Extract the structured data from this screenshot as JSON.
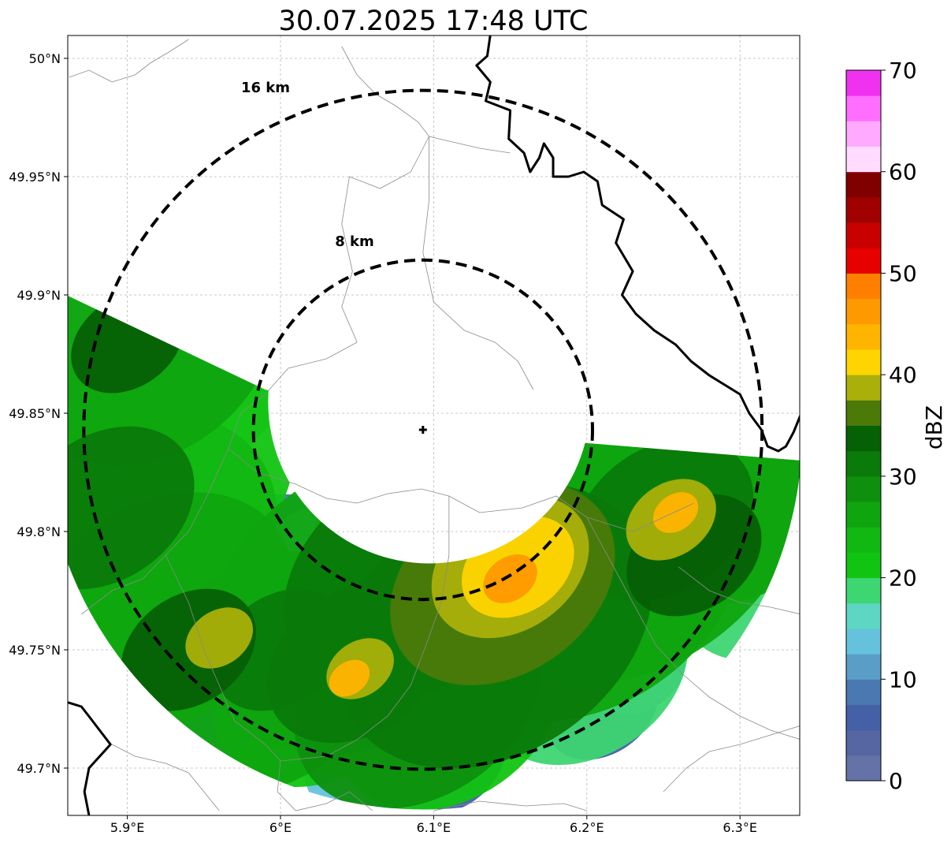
{
  "title": "30.07.2025 17:48 UTC",
  "map": {
    "lon_range": [
      5.86,
      6.34
    ],
    "lat_range": [
      49.68,
      50.01
    ],
    "x_ticks": [
      {
        "value": 5.9,
        "label": "5.9°E"
      },
      {
        "value": 6.0,
        "label": "6°E"
      },
      {
        "value": 6.1,
        "label": "6.1°E"
      },
      {
        "value": 6.2,
        "label": "6.2°E"
      },
      {
        "value": 6.3,
        "label": "6.3°E"
      }
    ],
    "y_ticks": [
      {
        "value": 49.7,
        "label": "49.7°N"
      },
      {
        "value": 49.75,
        "label": "49.75°N"
      },
      {
        "value": 49.8,
        "label": "49.8°N"
      },
      {
        "value": 49.85,
        "label": "49.85°N"
      },
      {
        "value": 49.9,
        "label": "49.9°N"
      },
      {
        "value": 49.95,
        "label": "49.95°N"
      },
      {
        "value": 50.0,
        "label": "50°N"
      }
    ],
    "gridlines": true,
    "radar_site": {
      "lon": 6.093,
      "lat": 49.843
    },
    "range_rings": [
      {
        "radius_km": 8,
        "label": "8 km"
      },
      {
        "radius_km": 16,
        "label": "16 km"
      }
    ],
    "country_border": [
      [
        6.137,
        50.01
      ],
      [
        6.135,
        50.001
      ],
      [
        6.128,
        49.997
      ],
      [
        6.137,
        49.99
      ],
      [
        6.134,
        49.982
      ],
      [
        6.15,
        49.978
      ],
      [
        6.149,
        49.966
      ],
      [
        6.159,
        49.96
      ],
      [
        6.163,
        49.952
      ],
      [
        6.169,
        49.958
      ],
      [
        6.172,
        49.964
      ],
      [
        6.178,
        49.958
      ],
      [
        6.178,
        49.95
      ],
      [
        6.188,
        49.95
      ],
      [
        6.198,
        49.952
      ],
      [
        6.207,
        49.948
      ],
      [
        6.21,
        49.938
      ],
      [
        6.224,
        49.932
      ],
      [
        6.219,
        49.922
      ],
      [
        6.23,
        49.91
      ],
      [
        6.223,
        49.9
      ],
      [
        6.232,
        49.892
      ],
      [
        6.244,
        49.885
      ],
      [
        6.258,
        49.879
      ],
      [
        6.268,
        49.872
      ],
      [
        6.28,
        49.866
      ],
      [
        6.29,
        49.862
      ],
      [
        6.3,
        49.858
      ],
      [
        6.306,
        49.85
      ],
      [
        6.314,
        49.843
      ],
      [
        6.318,
        49.836
      ],
      [
        6.325,
        49.834
      ],
      [
        6.33,
        49.836
      ],
      [
        6.335,
        49.842
      ],
      [
        6.34,
        49.85
      ]
    ],
    "southwest_border": [
      [
        5.86,
        49.728
      ],
      [
        5.87,
        49.726
      ],
      [
        5.876,
        49.721
      ],
      [
        5.889,
        49.71
      ],
      [
        5.875,
        49.7
      ],
      [
        5.872,
        49.69
      ],
      [
        5.875,
        49.68
      ]
    ],
    "local_boundaries": [
      [
        [
          6.04,
          50.005
        ],
        [
          6.05,
          49.993
        ],
        [
          6.062,
          49.985
        ],
        [
          6.075,
          49.98
        ],
        [
          6.09,
          49.973
        ],
        [
          6.097,
          49.967
        ],
        [
          6.11,
          49.965
        ],
        [
          6.13,
          49.962
        ],
        [
          6.15,
          49.96
        ]
      ],
      [
        [
          5.862,
          49.992
        ],
        [
          5.875,
          49.995
        ],
        [
          5.89,
          49.99
        ],
        [
          5.905,
          49.993
        ],
        [
          5.915,
          49.998
        ],
        [
          5.928,
          50.003
        ],
        [
          5.94,
          50.008
        ]
      ],
      [
        [
          6.097,
          49.967
        ],
        [
          6.085,
          49.952
        ],
        [
          6.065,
          49.945
        ],
        [
          6.045,
          49.95
        ],
        [
          6.04,
          49.93
        ],
        [
          6.047,
          49.91
        ],
        [
          6.04,
          49.895
        ],
        [
          6.05,
          49.88
        ]
      ],
      [
        [
          6.097,
          49.967
        ],
        [
          6.097,
          49.94
        ],
        [
          6.093,
          49.918
        ],
        [
          6.1,
          49.897
        ],
        [
          6.12,
          49.885
        ],
        [
          6.14,
          49.88
        ],
        [
          6.155,
          49.872
        ],
        [
          6.165,
          49.86
        ]
      ],
      [
        [
          6.05,
          49.88
        ],
        [
          6.03,
          49.873
        ],
        [
          6.005,
          49.869
        ],
        [
          5.99,
          49.858
        ],
        [
          5.974,
          49.85
        ],
        [
          5.966,
          49.835
        ]
      ],
      [
        [
          5.966,
          49.835
        ],
        [
          5.985,
          49.825
        ],
        [
          6.01,
          49.82
        ],
        [
          6.03,
          49.814
        ],
        [
          6.05,
          49.812
        ],
        [
          6.07,
          49.816
        ],
        [
          6.092,
          49.818
        ],
        [
          6.11,
          49.815
        ]
      ],
      [
        [
          6.11,
          49.815
        ],
        [
          6.13,
          49.808
        ],
        [
          6.158,
          49.81
        ],
        [
          6.18,
          49.815
        ],
        [
          6.2,
          49.806
        ],
        [
          6.23,
          49.8
        ],
        [
          6.25,
          49.806
        ],
        [
          6.27,
          49.812
        ]
      ],
      [
        [
          5.966,
          49.835
        ],
        [
          5.952,
          49.815
        ],
        [
          5.94,
          49.8
        ],
        [
          5.925,
          49.79
        ],
        [
          5.91,
          49.78
        ],
        [
          5.89,
          49.775
        ],
        [
          5.87,
          49.765
        ]
      ],
      [
        [
          6.11,
          49.815
        ],
        [
          6.11,
          49.79
        ],
        [
          6.105,
          49.77
        ],
        [
          6.095,
          49.752
        ],
        [
          6.085,
          49.735
        ],
        [
          6.07,
          49.722
        ],
        [
          6.05,
          49.712
        ],
        [
          6.03,
          49.705
        ],
        [
          6.0,
          49.703
        ]
      ],
      [
        [
          5.925,
          49.79
        ],
        [
          5.94,
          49.77
        ],
        [
          5.95,
          49.75
        ],
        [
          5.96,
          49.735
        ],
        [
          5.97,
          49.72
        ],
        [
          5.99,
          49.71
        ],
        [
          6.0,
          49.703
        ]
      ],
      [
        [
          5.89,
          49.71
        ],
        [
          5.905,
          49.705
        ],
        [
          5.925,
          49.702
        ],
        [
          5.94,
          49.698
        ],
        [
          5.95,
          49.69
        ],
        [
          5.96,
          49.682
        ]
      ],
      [
        [
          6.0,
          49.703
        ],
        [
          5.998,
          49.69
        ],
        [
          6.01,
          49.682
        ],
        [
          6.03,
          49.685
        ],
        [
          6.045,
          49.69
        ],
        [
          6.06,
          49.682
        ]
      ],
      [
        [
          6.2,
          49.806
        ],
        [
          6.215,
          49.788
        ],
        [
          6.23,
          49.77
        ],
        [
          6.245,
          49.752
        ],
        [
          6.262,
          49.74
        ],
        [
          6.28,
          49.73
        ],
        [
          6.3,
          49.722
        ],
        [
          6.32,
          49.716
        ],
        [
          6.34,
          49.712
        ]
      ],
      [
        [
          6.26,
          49.785
        ],
        [
          6.28,
          49.775
        ],
        [
          6.3,
          49.77
        ],
        [
          6.32,
          49.768
        ],
        [
          6.34,
          49.765
        ]
      ],
      [
        [
          6.1,
          49.682
        ],
        [
          6.13,
          49.686
        ],
        [
          6.16,
          49.684
        ],
        [
          6.185,
          49.685
        ],
        [
          6.2,
          49.682
        ]
      ],
      [
        [
          6.25,
          49.69
        ],
        [
          6.265,
          49.7
        ],
        [
          6.28,
          49.707
        ],
        [
          6.3,
          49.71
        ],
        [
          6.32,
          49.714
        ],
        [
          6.34,
          49.718
        ]
      ]
    ],
    "precip_cells": [
      {
        "lon": 5.905,
        "lat": 49.875,
        "radius_km": 8,
        "dbz": 18
      },
      {
        "lon": 5.915,
        "lat": 49.875,
        "radius_km": 5.5,
        "dbz": 27
      },
      {
        "lon": 5.9,
        "lat": 49.88,
        "radius_km": 2.5,
        "dbz": 33
      },
      {
        "lon": 5.9,
        "lat": 49.82,
        "radius_km": 7.5,
        "dbz": 22
      },
      {
        "lon": 5.885,
        "lat": 49.81,
        "radius_km": 4,
        "dbz": 30
      },
      {
        "lon": 5.895,
        "lat": 49.79,
        "radius_km": 7,
        "dbz": 24
      },
      {
        "lon": 5.92,
        "lat": 49.765,
        "radius_km": 6,
        "dbz": 26
      },
      {
        "lon": 5.94,
        "lat": 49.75,
        "radius_km": 3,
        "dbz": 33
      },
      {
        "lon": 5.96,
        "lat": 49.755,
        "radius_km": 1.5,
        "dbz": 38
      },
      {
        "lon": 5.99,
        "lat": 49.74,
        "radius_km": 6,
        "dbz": 26
      },
      {
        "lon": 6.0,
        "lat": 49.75,
        "radius_km": 3,
        "dbz": 32
      },
      {
        "lon": 6.03,
        "lat": 49.735,
        "radius_km": 5,
        "dbz": 22
      },
      {
        "lon": 6.05,
        "lat": 49.745,
        "radius_km": 4,
        "dbz": 30
      },
      {
        "lon": 6.052,
        "lat": 49.742,
        "radius_km": 1.5,
        "dbz": 38
      },
      {
        "lon": 6.045,
        "lat": 49.738,
        "radius_km": 0.9,
        "dbz": 44
      },
      {
        "lon": 6.09,
        "lat": 49.73,
        "radius_km": 5.5,
        "dbz": 28
      },
      {
        "lon": 6.11,
        "lat": 49.725,
        "radius_km": 5,
        "dbz": 22
      },
      {
        "lon": 6.06,
        "lat": 49.77,
        "radius_km": 7.5,
        "dbz": 26
      },
      {
        "lon": 6.09,
        "lat": 49.78,
        "radius_km": 6,
        "dbz": 30
      },
      {
        "lon": 6.14,
        "lat": 49.76,
        "radius_km": 7,
        "dbz": 30
      },
      {
        "lon": 6.145,
        "lat": 49.778,
        "radius_km": 5,
        "dbz": 35
      },
      {
        "lon": 6.15,
        "lat": 49.785,
        "radius_km": 3.5,
        "dbz": 38
      },
      {
        "lon": 6.155,
        "lat": 49.785,
        "radius_km": 2.5,
        "dbz": 42
      },
      {
        "lon": 6.15,
        "lat": 49.78,
        "radius_km": 1.2,
        "dbz": 46
      },
      {
        "lon": 6.11,
        "lat": 49.81,
        "radius_km": 6,
        "dbz": 24
      },
      {
        "lon": 6.13,
        "lat": 49.83,
        "radius_km": 6,
        "dbz": 22
      },
      {
        "lon": 6.17,
        "lat": 49.835,
        "radius_km": 5,
        "dbz": 27
      },
      {
        "lon": 6.2,
        "lat": 49.78,
        "radius_km": 7,
        "dbz": 27
      },
      {
        "lon": 6.23,
        "lat": 49.8,
        "radius_km": 7.5,
        "dbz": 26
      },
      {
        "lon": 6.25,
        "lat": 49.805,
        "radius_km": 4,
        "dbz": 32
      },
      {
        "lon": 6.255,
        "lat": 49.805,
        "radius_km": 2,
        "dbz": 38
      },
      {
        "lon": 6.258,
        "lat": 49.808,
        "radius_km": 1,
        "dbz": 43
      },
      {
        "lon": 6.27,
        "lat": 49.79,
        "radius_km": 3,
        "dbz": 34
      },
      {
        "lon": 6.26,
        "lat": 49.84,
        "radius_km": 6,
        "dbz": 24
      },
      {
        "lon": 6.3,
        "lat": 49.82,
        "radius_km": 6,
        "dbz": 26
      },
      {
        "lon": 6.28,
        "lat": 49.86,
        "radius_km": 5.5,
        "dbz": 22
      },
      {
        "lon": 6.3,
        "lat": 49.87,
        "radius_km": 3.5,
        "dbz": 27
      },
      {
        "lon": 6.25,
        "lat": 49.88,
        "radius_km": 3.5,
        "dbz": 22
      },
      {
        "lon": 6.32,
        "lat": 49.78,
        "radius_km": 4,
        "dbz": 19
      },
      {
        "lon": 6.2,
        "lat": 49.74,
        "radius_km": 4.5,
        "dbz": 19
      }
    ],
    "edge_cells": [
      {
        "lon": 5.93,
        "lat": 49.905,
        "radius_km": 3,
        "dbz": 7
      },
      {
        "lon": 5.95,
        "lat": 49.89,
        "radius_km": 2.5,
        "dbz": 11
      },
      {
        "lon": 5.95,
        "lat": 49.8,
        "radius_km": 3,
        "dbz": 7
      },
      {
        "lon": 5.935,
        "lat": 49.82,
        "radius_km": 2.5,
        "dbz": 13
      },
      {
        "lon": 5.99,
        "lat": 49.79,
        "radius_km": 3,
        "dbz": 9
      },
      {
        "lon": 6.02,
        "lat": 49.79,
        "radius_km": 2.5,
        "dbz": 13
      },
      {
        "lon": 6.07,
        "lat": 49.83,
        "radius_km": 3,
        "dbz": 14
      },
      {
        "lon": 6.1,
        "lat": 49.846,
        "radius_km": 1.4,
        "dbz": 6
      },
      {
        "lon": 6.15,
        "lat": 49.852,
        "radius_km": 2.5,
        "dbz": 11
      },
      {
        "lon": 6.2,
        "lat": 49.868,
        "radius_km": 2.2,
        "dbz": 6
      },
      {
        "lon": 6.24,
        "lat": 49.888,
        "radius_km": 2.2,
        "dbz": 7
      },
      {
        "lon": 6.26,
        "lat": 49.898,
        "radius_km": 2,
        "dbz": 5
      },
      {
        "lon": 6.31,
        "lat": 49.88,
        "radius_km": 2,
        "dbz": 8
      },
      {
        "lon": 6.21,
        "lat": 49.725,
        "radius_km": 2.5,
        "dbz": 6
      },
      {
        "lon": 6.235,
        "lat": 49.74,
        "radius_km": 2,
        "dbz": 8
      },
      {
        "lon": 6.06,
        "lat": 49.705,
        "radius_km": 3,
        "dbz": 13
      },
      {
        "lon": 6.11,
        "lat": 49.702,
        "radius_km": 2.5,
        "dbz": 7
      },
      {
        "lon": 5.88,
        "lat": 49.735,
        "radius_km": 3,
        "dbz": 15
      },
      {
        "lon": 5.96,
        "lat": 49.72,
        "radius_km": 2,
        "dbz": 9
      }
    ]
  },
  "colorbar": {
    "label": "dBZ",
    "range": [
      0,
      70
    ],
    "ticks": [
      {
        "value": 0,
        "label": "0"
      },
      {
        "value": 10,
        "label": "10"
      },
      {
        "value": 20,
        "label": "20"
      },
      {
        "value": 30,
        "label": "30"
      },
      {
        "value": 40,
        "label": "40"
      },
      {
        "value": 50,
        "label": "50"
      },
      {
        "value": 60,
        "label": "60"
      },
      {
        "value": 70,
        "label": "70"
      }
    ],
    "levels": [
      0,
      2.5,
      5,
      7.5,
      10,
      12.5,
      15,
      17.5,
      20,
      22.5,
      25,
      27.5,
      30,
      32.5,
      35,
      37.5,
      40,
      42.5,
      45,
      47.5,
      50,
      52.5,
      55,
      57.5,
      60,
      62.5,
      65,
      67.5
    ],
    "colors": [
      "#6472a8",
      "#5566a2",
      "#4460a6",
      "#4a78b0",
      "#5a9ec8",
      "#66c2dc",
      "#5ed6c4",
      "#3ed672",
      "#12c412",
      "#12b812",
      "#0fa50f",
      "#0e900e",
      "#0a7a0a",
      "#066006",
      "#4b7a08",
      "#aab00a",
      "#ffd400",
      "#ffb400",
      "#ff9900",
      "#ff7f00",
      "#e60000",
      "#c80000",
      "#a00000",
      "#800000",
      "#ffdcff",
      "#ffaaff",
      "#ff6eff",
      "#f032f0"
    ]
  }
}
